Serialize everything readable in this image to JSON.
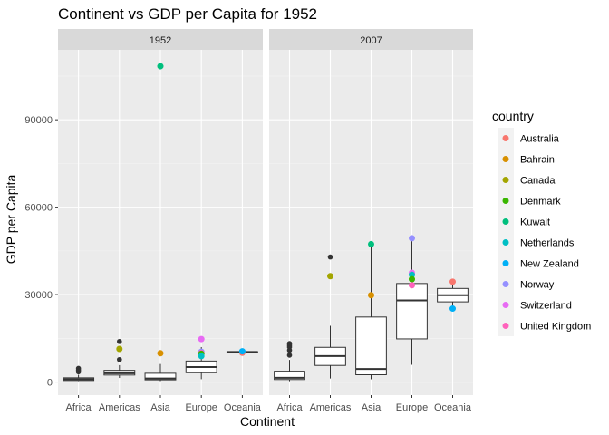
{
  "chart_data": {
    "type": "box+scatter",
    "title": "Continent vs GDP per Capita for 1952",
    "xlabel": "Continent",
    "ylabel": "GDP per Capita",
    "ylim": [
      -4500,
      114000
    ],
    "yticks": [
      0,
      30000,
      60000,
      90000
    ],
    "ytick_labels": [
      "0",
      "30000",
      "60000",
      "90000"
    ],
    "categories": [
      "Africa",
      "Americas",
      "Asia",
      "Europe",
      "Oceania"
    ],
    "grid": true,
    "legend": {
      "title": "country",
      "position": "right",
      "entries": [
        {
          "name": "Australia",
          "color": "#F8766D"
        },
        {
          "name": "Bahrain",
          "color": "#D89000"
        },
        {
          "name": "Canada",
          "color": "#A3A500"
        },
        {
          "name": "Denmark",
          "color": "#39B600"
        },
        {
          "name": "Kuwait",
          "color": "#00BF7D"
        },
        {
          "name": "Netherlands",
          "color": "#00BFC4"
        },
        {
          "name": "New Zealand",
          "color": "#00B0F6"
        },
        {
          "name": "Norway",
          "color": "#9590FF"
        },
        {
          "name": "Switzerland",
          "color": "#E76BF3"
        },
        {
          "name": "United Kingdom",
          "color": "#FF62BC"
        }
      ]
    },
    "panels": [
      {
        "label": "1952",
        "boxes": [
          {
            "category": "Africa",
            "lower_whisker": 300,
            "q1": 530,
            "median": 990,
            "q3": 1450,
            "upper_whisker": 2500,
            "outliers": [
              3500,
              4100,
              4700
            ]
          },
          {
            "category": "Americas",
            "lower_whisker": 1400,
            "q1": 2400,
            "median": 3000,
            "q3": 4000,
            "upper_whisker": 5800,
            "outliers": [
              7700,
              11300,
              13900
            ]
          },
          {
            "category": "Asia",
            "lower_whisker": 330,
            "q1": 750,
            "median": 1200,
            "q3": 3000,
            "upper_whisker": 6200,
            "outliers": [
              9900,
              108400
            ]
          },
          {
            "category": "Europe",
            "lower_whisker": 970,
            "q1": 3200,
            "median": 5150,
            "q3": 7200,
            "upper_whisker": 12000,
            "outliers": [
              14700
            ]
          },
          {
            "category": "Oceania",
            "lower_whisker": 10040,
            "q1": 10100,
            "median": 10300,
            "q3": 10400,
            "upper_whisker": 10560,
            "outliers": []
          }
        ],
        "points": [
          {
            "category": "Americas",
            "value": 11367,
            "country": "Canada"
          },
          {
            "category": "Asia",
            "value": 108382,
            "country": "Kuwait"
          },
          {
            "category": "Asia",
            "value": 9867,
            "country": "Bahrain"
          },
          {
            "category": "Europe",
            "value": 14734,
            "country": "Switzerland"
          },
          {
            "category": "Europe",
            "value": 10400,
            "country": "Norway"
          },
          {
            "category": "Europe",
            "value": 9980,
            "country": "United Kingdom"
          },
          {
            "category": "Europe",
            "value": 9700,
            "country": "Denmark"
          },
          {
            "category": "Europe",
            "value": 8900,
            "country": "Netherlands"
          },
          {
            "category": "Oceania",
            "value": 10040,
            "country": "Australia"
          },
          {
            "category": "Oceania",
            "value": 10556,
            "country": "New Zealand"
          }
        ]
      },
      {
        "label": "2007",
        "boxes": [
          {
            "category": "Africa",
            "lower_whisker": 280,
            "q1": 860,
            "median": 1450,
            "q3": 3700,
            "upper_whisker": 7600,
            "outliers": [
              9200,
              10900,
              12000,
              12600,
              13200
            ]
          },
          {
            "category": "Americas",
            "lower_whisker": 1200,
            "q1": 5700,
            "median": 8900,
            "q3": 11900,
            "upper_whisker": 19300,
            "outliers": [
              42900
            ]
          },
          {
            "category": "Asia",
            "lower_whisker": 950,
            "q1": 2500,
            "median": 4500,
            "q3": 22300,
            "upper_whisker": 47300,
            "outliers": []
          },
          {
            "category": "Europe",
            "lower_whisker": 5900,
            "q1": 14800,
            "median": 28000,
            "q3": 33800,
            "upper_whisker": 49400,
            "outliers": []
          },
          {
            "category": "Oceania",
            "lower_whisker": 25200,
            "q1": 27500,
            "median": 29800,
            "q3": 32100,
            "upper_whisker": 34400,
            "outliers": []
          }
        ],
        "points": [
          {
            "category": "Americas",
            "value": 36319,
            "country": "Canada"
          },
          {
            "category": "Asia",
            "value": 47307,
            "country": "Kuwait"
          },
          {
            "category": "Asia",
            "value": 29796,
            "country": "Bahrain"
          },
          {
            "category": "Europe",
            "value": 49357,
            "country": "Norway"
          },
          {
            "category": "Europe",
            "value": 37506,
            "country": "Switzerland"
          },
          {
            "category": "Europe",
            "value": 36798,
            "country": "Netherlands"
          },
          {
            "category": "Europe",
            "value": 35278,
            "country": "Denmark"
          },
          {
            "category": "Europe",
            "value": 33203,
            "country": "United Kingdom"
          },
          {
            "category": "Oceania",
            "value": 34435,
            "country": "Australia"
          },
          {
            "category": "Oceania",
            "value": 25185,
            "country": "New Zealand"
          }
        ]
      }
    ]
  }
}
